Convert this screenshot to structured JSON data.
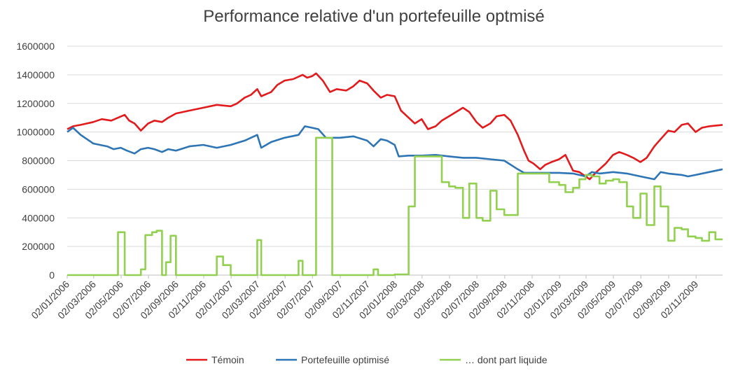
{
  "chart_data": {
    "type": "line",
    "title": "Performance relative d'un portefeuille optmisé",
    "ylim": [
      0,
      1600000
    ],
    "y_ticks": [
      "0",
      "200000",
      "400000",
      "600000",
      "800000",
      "1000000",
      "1200000",
      "1400000",
      "1600000"
    ],
    "x_ticks": [
      "02/01/2006",
      "02/03/2006",
      "02/05/2006",
      "02/07/2006",
      "02/09/2006",
      "02/11/2006",
      "02/01/2007",
      "02/03/2007",
      "02/05/2007",
      "02/07/2007",
      "02/09/2007",
      "02/11/2007",
      "02/01/2008",
      "02/03/2008",
      "02/05/2008",
      "02/07/2008",
      "02/09/2008",
      "02/11/2008",
      "02/01/2009",
      "02/03/2009",
      "02/05/2009",
      "02/07/2009",
      "02/09/2009",
      "02/11/2009"
    ],
    "x_end": "31/12/2009",
    "grid": "horizontal",
    "legend_position": "bottom",
    "series": [
      {
        "name": "Témoin",
        "color": "#e31a1c",
        "points": [
          [
            "02/01/2006",
            1020000
          ],
          [
            "15/01/2006",
            1040000
          ],
          [
            "01/02/2006",
            1050000
          ],
          [
            "15/02/2006",
            1060000
          ],
          [
            "01/03/2006",
            1070000
          ],
          [
            "20/03/2006",
            1090000
          ],
          [
            "10/04/2006",
            1080000
          ],
          [
            "25/04/2006",
            1100000
          ],
          [
            "10/05/2006",
            1120000
          ],
          [
            "20/05/2006",
            1080000
          ],
          [
            "01/06/2006",
            1060000
          ],
          [
            "15/06/2006",
            1010000
          ],
          [
            "01/07/2006",
            1060000
          ],
          [
            "15/07/2006",
            1080000
          ],
          [
            "01/08/2006",
            1070000
          ],
          [
            "15/08/2006",
            1100000
          ],
          [
            "01/09/2006",
            1130000
          ],
          [
            "01/10/2006",
            1150000
          ],
          [
            "01/11/2006",
            1170000
          ],
          [
            "01/12/2006",
            1190000
          ],
          [
            "01/01/2007",
            1180000
          ],
          [
            "15/01/2007",
            1200000
          ],
          [
            "01/02/2007",
            1240000
          ],
          [
            "15/02/2007",
            1260000
          ],
          [
            "01/03/2007",
            1300000
          ],
          [
            "10/03/2007",
            1250000
          ],
          [
            "01/04/2007",
            1280000
          ],
          [
            "15/04/2007",
            1330000
          ],
          [
            "01/05/2007",
            1360000
          ],
          [
            "20/05/2007",
            1370000
          ],
          [
            "10/06/2007",
            1400000
          ],
          [
            "20/06/2007",
            1380000
          ],
          [
            "01/07/2007",
            1390000
          ],
          [
            "10/07/2007",
            1410000
          ],
          [
            "25/07/2007",
            1360000
          ],
          [
            "10/08/2007",
            1280000
          ],
          [
            "25/08/2007",
            1300000
          ],
          [
            "15/09/2007",
            1290000
          ],
          [
            "01/10/2007",
            1320000
          ],
          [
            "15/10/2007",
            1360000
          ],
          [
            "01/11/2007",
            1340000
          ],
          [
            "15/11/2007",
            1290000
          ],
          [
            "01/12/2007",
            1240000
          ],
          [
            "15/12/2007",
            1260000
          ],
          [
            "01/01/2008",
            1250000
          ],
          [
            "15/01/2008",
            1150000
          ],
          [
            "01/02/2008",
            1100000
          ],
          [
            "15/02/2008",
            1060000
          ],
          [
            "01/03/2008",
            1090000
          ],
          [
            "15/03/2008",
            1020000
          ],
          [
            "01/04/2008",
            1040000
          ],
          [
            "15/04/2008",
            1080000
          ],
          [
            "01/05/2008",
            1110000
          ],
          [
            "01/06/2008",
            1170000
          ],
          [
            "15/06/2008",
            1140000
          ],
          [
            "01/07/2008",
            1070000
          ],
          [
            "15/07/2008",
            1030000
          ],
          [
            "01/08/2008",
            1060000
          ],
          [
            "15/08/2008",
            1110000
          ],
          [
            "01/09/2008",
            1120000
          ],
          [
            "15/09/2008",
            1080000
          ],
          [
            "01/10/2008",
            980000
          ],
          [
            "15/10/2008",
            870000
          ],
          [
            "25/10/2008",
            800000
          ],
          [
            "05/11/2008",
            780000
          ],
          [
            "20/11/2008",
            740000
          ],
          [
            "01/12/2008",
            770000
          ],
          [
            "15/12/2008",
            790000
          ],
          [
            "01/01/2009",
            810000
          ],
          [
            "15/01/2009",
            840000
          ],
          [
            "01/02/2009",
            730000
          ],
          [
            "15/02/2009",
            720000
          ],
          [
            "01/03/2009",
            690000
          ],
          [
            "10/03/2009",
            670000
          ],
          [
            "25/03/2009",
            720000
          ],
          [
            "15/04/2009",
            780000
          ],
          [
            "01/05/2009",
            840000
          ],
          [
            "15/05/2009",
            860000
          ],
          [
            "01/06/2009",
            840000
          ],
          [
            "15/06/2009",
            820000
          ],
          [
            "01/07/2009",
            790000
          ],
          [
            "15/07/2009",
            820000
          ],
          [
            "01/08/2009",
            900000
          ],
          [
            "15/08/2009",
            950000
          ],
          [
            "01/09/2009",
            1010000
          ],
          [
            "15/09/2009",
            1000000
          ],
          [
            "01/10/2009",
            1050000
          ],
          [
            "15/10/2009",
            1060000
          ],
          [
            "01/11/2009",
            1000000
          ],
          [
            "15/11/2009",
            1030000
          ],
          [
            "01/12/2009",
            1040000
          ],
          [
            "31/12/2009",
            1050000
          ]
        ]
      },
      {
        "name": "Portefeuille optimisé",
        "color": "#2e75b6",
        "points": [
          [
            "02/01/2006",
            1000000
          ],
          [
            "15/01/2006",
            1030000
          ],
          [
            "01/02/2006",
            980000
          ],
          [
            "15/02/2006",
            950000
          ],
          [
            "01/03/2006",
            920000
          ],
          [
            "01/04/2006",
            900000
          ],
          [
            "15/04/2006",
            880000
          ],
          [
            "01/05/2006",
            890000
          ],
          [
            "15/05/2006",
            870000
          ],
          [
            "01/06/2006",
            850000
          ],
          [
            "15/06/2006",
            880000
          ],
          [
            "01/07/2006",
            890000
          ],
          [
            "15/07/2006",
            880000
          ],
          [
            "01/08/2006",
            860000
          ],
          [
            "15/08/2006",
            880000
          ],
          [
            "01/09/2006",
            870000
          ],
          [
            "01/10/2006",
            900000
          ],
          [
            "01/11/2006",
            910000
          ],
          [
            "01/12/2006",
            890000
          ],
          [
            "01/01/2007",
            910000
          ],
          [
            "01/02/2007",
            940000
          ],
          [
            "15/02/2007",
            960000
          ],
          [
            "01/03/2007",
            980000
          ],
          [
            "10/03/2007",
            890000
          ],
          [
            "01/04/2007",
            930000
          ],
          [
            "01/05/2007",
            960000
          ],
          [
            "01/06/2007",
            980000
          ],
          [
            "15/06/2007",
            1040000
          ],
          [
            "01/07/2007",
            1030000
          ],
          [
            "15/07/2007",
            1020000
          ],
          [
            "01/08/2007",
            960000
          ],
          [
            "15/08/2007",
            960000
          ],
          [
            "01/09/2007",
            960000
          ],
          [
            "01/10/2007",
            970000
          ],
          [
            "01/11/2007",
            940000
          ],
          [
            "15/11/2007",
            900000
          ],
          [
            "01/12/2007",
            950000
          ],
          [
            "15/12/2007",
            940000
          ],
          [
            "01/01/2008",
            910000
          ],
          [
            "10/01/2008",
            830000
          ],
          [
            "01/02/2008",
            835000
          ],
          [
            "01/03/2008",
            835000
          ],
          [
            "01/04/2008",
            840000
          ],
          [
            "01/05/2008",
            830000
          ],
          [
            "01/06/2008",
            820000
          ],
          [
            "01/07/2008",
            820000
          ],
          [
            "01/08/2008",
            810000
          ],
          [
            "01/09/2008",
            800000
          ],
          [
            "01/10/2008",
            740000
          ],
          [
            "15/10/2008",
            715000
          ],
          [
            "01/12/2008",
            715000
          ],
          [
            "01/01/2009",
            715000
          ],
          [
            "01/02/2009",
            710000
          ],
          [
            "01/03/2009",
            690000
          ],
          [
            "15/03/2009",
            720000
          ],
          [
            "01/04/2009",
            710000
          ],
          [
            "01/05/2009",
            720000
          ],
          [
            "01/06/2009",
            710000
          ],
          [
            "01/07/2009",
            690000
          ],
          [
            "01/08/2009",
            670000
          ],
          [
            "15/08/2009",
            720000
          ],
          [
            "01/09/2009",
            710000
          ],
          [
            "01/10/2009",
            700000
          ],
          [
            "15/10/2009",
            690000
          ],
          [
            "01/11/2009",
            700000
          ],
          [
            "01/12/2009",
            720000
          ],
          [
            "31/12/2009",
            740000
          ]
        ]
      },
      {
        "name": "… dont part liquide",
        "color": "#92d050",
        "step": true,
        "points": [
          [
            "02/01/2006",
            0
          ],
          [
            "25/04/2006",
            300000
          ],
          [
            "10/05/2006",
            0
          ],
          [
            "15/06/2006",
            40000
          ],
          [
            "25/06/2006",
            280000
          ],
          [
            "10/07/2006",
            300000
          ],
          [
            "20/07/2006",
            310000
          ],
          [
            "01/08/2006",
            0
          ],
          [
            "10/08/2006",
            90000
          ],
          [
            "20/08/2006",
            275000
          ],
          [
            "01/09/2006",
            0
          ],
          [
            "01/12/2006",
            130000
          ],
          [
            "15/12/2006",
            70000
          ],
          [
            "01/01/2007",
            0
          ],
          [
            "01/03/2007",
            245000
          ],
          [
            "10/03/2007",
            0
          ],
          [
            "01/06/2007",
            100000
          ],
          [
            "10/06/2007",
            0
          ],
          [
            "10/07/2007",
            960000
          ],
          [
            "15/08/2007",
            0
          ],
          [
            "15/11/2007",
            40000
          ],
          [
            "25/11/2007",
            0
          ],
          [
            "01/01/2008",
            5000
          ],
          [
            "01/02/2008",
            480000
          ],
          [
            "15/02/2008",
            830000
          ],
          [
            "15/04/2008",
            650000
          ],
          [
            "01/05/2008",
            620000
          ],
          [
            "15/05/2008",
            610000
          ],
          [
            "01/06/2008",
            400000
          ],
          [
            "15/06/2008",
            640000
          ],
          [
            "01/07/2008",
            400000
          ],
          [
            "15/07/2008",
            380000
          ],
          [
            "01/08/2008",
            590000
          ],
          [
            "15/08/2008",
            460000
          ],
          [
            "01/09/2008",
            420000
          ],
          [
            "01/10/2008",
            710000
          ],
          [
            "10/12/2008",
            650000
          ],
          [
            "01/01/2009",
            630000
          ],
          [
            "15/01/2009",
            580000
          ],
          [
            "01/02/2009",
            610000
          ],
          [
            "15/02/2009",
            670000
          ],
          [
            "01/03/2009",
            700000
          ],
          [
            "15/03/2009",
            690000
          ],
          [
            "01/04/2009",
            640000
          ],
          [
            "15/04/2009",
            660000
          ],
          [
            "01/05/2009",
            670000
          ],
          [
            "15/05/2009",
            650000
          ],
          [
            "01/06/2009",
            480000
          ],
          [
            "15/06/2009",
            400000
          ],
          [
            "01/07/2009",
            570000
          ],
          [
            "15/07/2009",
            350000
          ],
          [
            "01/08/2009",
            620000
          ],
          [
            "15/08/2009",
            480000
          ],
          [
            "01/09/2009",
            240000
          ],
          [
            "15/09/2009",
            330000
          ],
          [
            "01/10/2009",
            320000
          ],
          [
            "15/10/2009",
            270000
          ],
          [
            "01/11/2009",
            260000
          ],
          [
            "15/11/2009",
            240000
          ],
          [
            "01/12/2009",
            300000
          ],
          [
            "15/12/2009",
            250000
          ],
          [
            "31/12/2009",
            250000
          ]
        ]
      }
    ]
  }
}
